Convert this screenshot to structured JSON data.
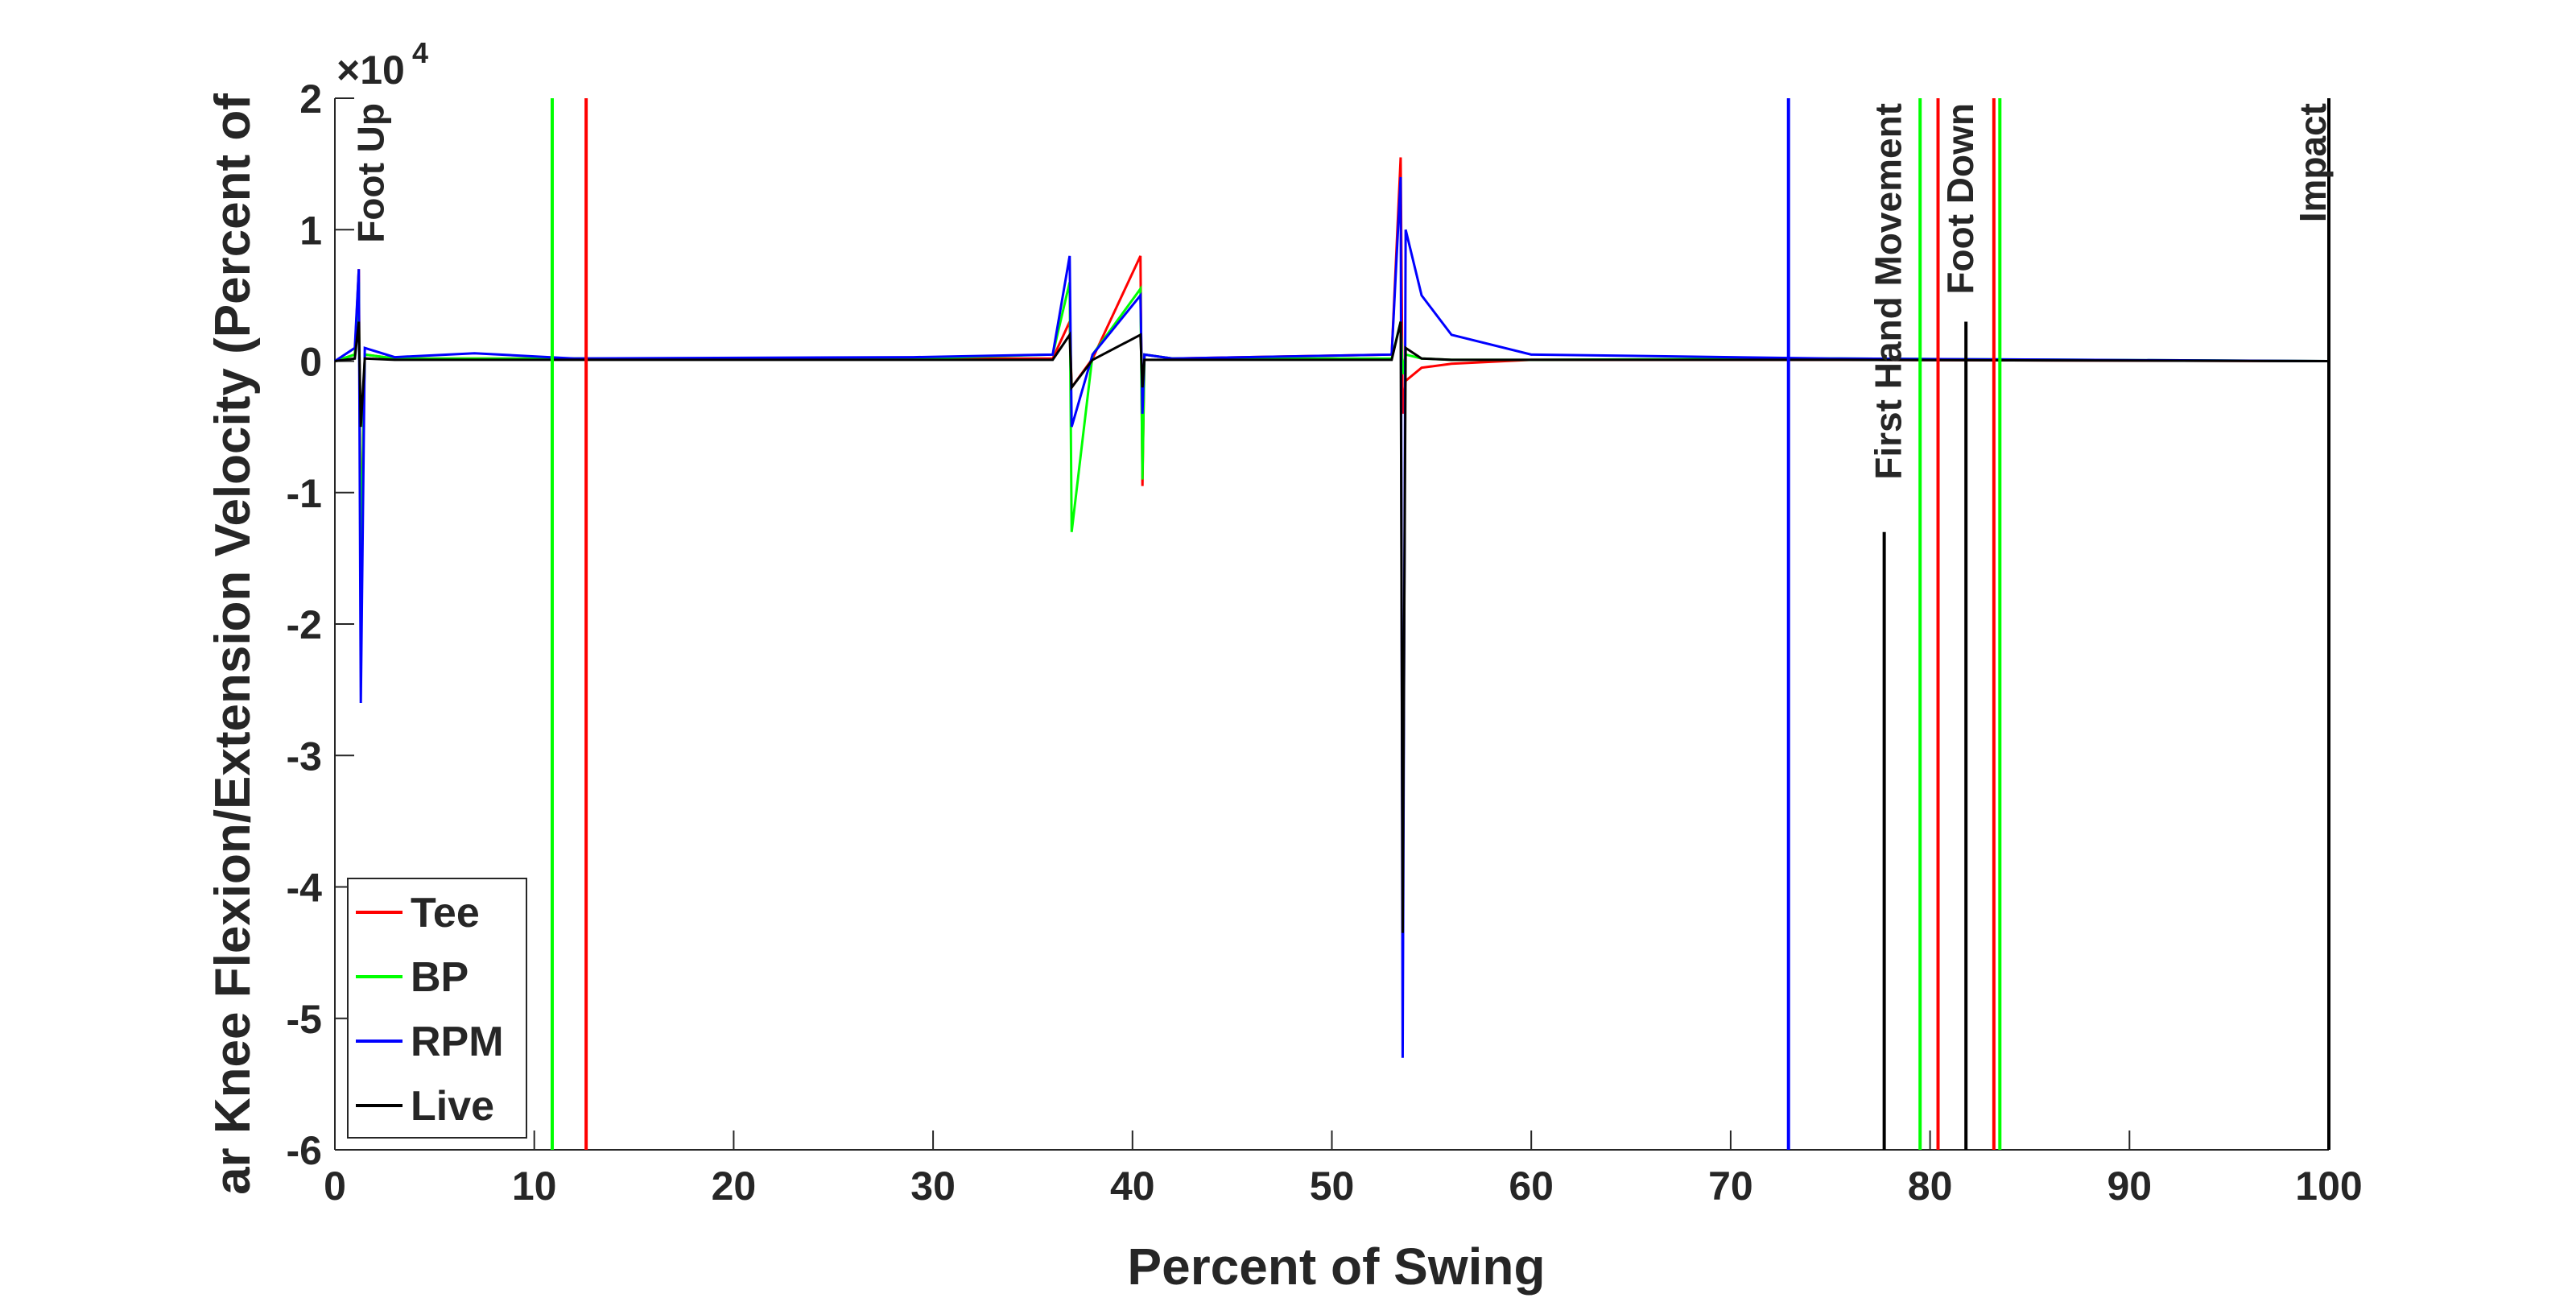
{
  "chart_data": {
    "type": "line",
    "y_label": "ar Knee Flexion/Extension Velocity (Percent of",
    "x_label": "Percent of Swing",
    "y_scale_base": "×10",
    "y_scale_power": "4",
    "x": [
      0,
      1.0,
      1.2,
      1.3,
      1.5,
      3,
      7,
      12,
      29,
      36,
      36.85,
      36.95,
      38,
      40.4,
      40.5,
      40.6,
      42,
      53,
      53.45,
      53.55,
      53.7,
      54.5,
      56,
      60,
      75,
      100
    ],
    "series": [
      {
        "name": "Tee",
        "color": "#ff0000",
        "values": [
          0,
          0.05,
          0.7,
          -1.5,
          0.05,
          0.02,
          0.02,
          0.02,
          0.02,
          0.02,
          0.3,
          -0.2,
          0.02,
          0.8,
          -0.95,
          0.05,
          0.02,
          0.05,
          1.55,
          -0.4,
          -0.15,
          -0.05,
          -0.02,
          0.01,
          0.01,
          0
        ]
      },
      {
        "name": "BP",
        "color": "#00ff00",
        "values": [
          0,
          0.05,
          0.6,
          -1.6,
          0.05,
          0.02,
          0.02,
          0.02,
          0.02,
          0.05,
          0.6,
          -1.3,
          0.05,
          0.55,
          -0.9,
          0.05,
          0.02,
          0.02,
          0.3,
          -0.1,
          0.05,
          0.02,
          0.01,
          0.01,
          0.02,
          0
        ]
      },
      {
        "name": "RPM",
        "color": "#0000ff",
        "values": [
          0,
          0.1,
          0.7,
          -2.6,
          0.1,
          0.03,
          0.06,
          0.02,
          0.03,
          0.05,
          0.8,
          -0.5,
          0.05,
          0.5,
          -0.4,
          0.05,
          0.02,
          0.05,
          1.4,
          -5.3,
          1.0,
          0.5,
          0.2,
          0.05,
          0.02,
          0
        ]
      },
      {
        "name": "Live",
        "color": "#000000",
        "values": [
          0,
          0.02,
          0.3,
          -0.5,
          0.02,
          0.01,
          0.01,
          0.01,
          0.01,
          0.01,
          0.2,
          -0.2,
          0.01,
          0.2,
          -0.2,
          0.01,
          0.01,
          0.01,
          0.3,
          -4.35,
          0.1,
          0.02,
          0.01,
          0.01,
          0.01,
          0
        ]
      }
    ],
    "event_lines": [
      {
        "x": 10.9,
        "color": "#00ff00"
      },
      {
        "x": 12.6,
        "color": "#ff0000"
      },
      {
        "x": 72.9,
        "color": "#0000ff"
      },
      {
        "x": 77.7,
        "color": "#000000",
        "y_end": -1.3
      },
      {
        "x": 79.5,
        "color": "#00ff00"
      },
      {
        "x": 80.4,
        "color": "#ff0000"
      },
      {
        "x": 81.8,
        "color": "#000000",
        "y_end": 0.3
      },
      {
        "x": 83.2,
        "color": "#ff0000"
      },
      {
        "x": 83.5,
        "color": "#00ff00"
      },
      {
        "x": 100,
        "color": "#000000"
      }
    ],
    "event_labels": [
      {
        "x": 1.8,
        "label": "Foot Up"
      },
      {
        "x": 77.9,
        "label": "First Hand Movement"
      },
      {
        "x": 81.5,
        "label": "Foot Down"
      },
      {
        "x": 99.2,
        "label": "Impact"
      }
    ],
    "xlim": [
      0,
      100
    ],
    "xticks": [
      0,
      10,
      20,
      30,
      40,
      50,
      60,
      70,
      80,
      90,
      100
    ],
    "ylim": [
      -6,
      2
    ],
    "yticks": [
      -6,
      -5,
      -4,
      -3,
      -2,
      -1,
      0,
      1,
      2
    ],
    "legend": "lower left"
  }
}
